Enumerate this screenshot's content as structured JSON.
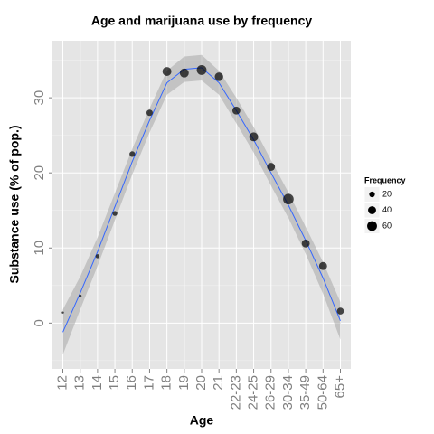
{
  "chart_data": {
    "type": "scatter",
    "title": "Age and marijuana use by frequency",
    "x_label": "Age",
    "y_label": "Substance use (% of pop.)",
    "categories": [
      "12",
      "13",
      "14",
      "15",
      "16",
      "17",
      "18",
      "19",
      "20",
      "21",
      "22-23",
      "24-25",
      "26-29",
      "30-34",
      "35-49",
      "50-64",
      "65+"
    ],
    "values": [
      1.4,
      3.6,
      8.9,
      14.6,
      22.5,
      28.0,
      33.5,
      33.3,
      33.7,
      32.8,
      28.3,
      24.8,
      20.8,
      16.5,
      10.6,
      7.6,
      1.6
    ],
    "sizes": [
      3,
      5,
      10,
      15,
      20,
      25,
      50,
      50,
      60,
      45,
      40,
      50,
      40,
      70,
      40,
      40,
      30
    ],
    "color": "#000000",
    "smooth": {
      "color": "#3366ff",
      "band_color": "#999999",
      "values": [
        -1.2,
        4.0,
        9.5,
        15.5,
        21.5,
        27.0,
        32.0,
        33.8,
        34.0,
        32.0,
        28.3,
        24.4,
        20.0,
        15.7,
        11.0,
        6.0,
        0.3
      ],
      "lower": [
        -4.2,
        1.8,
        7.6,
        13.7,
        19.8,
        25.4,
        30.4,
        32.1,
        32.3,
        30.4,
        26.6,
        22.7,
        18.3,
        14.0,
        9.2,
        3.9,
        -2.2
      ],
      "upper": [
        1.8,
        6.2,
        11.4,
        17.3,
        23.2,
        28.6,
        33.6,
        35.5,
        35.7,
        33.6,
        30.0,
        26.1,
        21.7,
        17.4,
        12.8,
        8.1,
        2.8
      ]
    },
    "ylim": [
      -6.1,
      37.6
    ],
    "yticks": [
      0,
      10,
      20,
      30
    ],
    "grid": true,
    "legend": {
      "title": "Frequency",
      "position": "right",
      "entries": [
        20,
        40,
        60
      ]
    }
  }
}
